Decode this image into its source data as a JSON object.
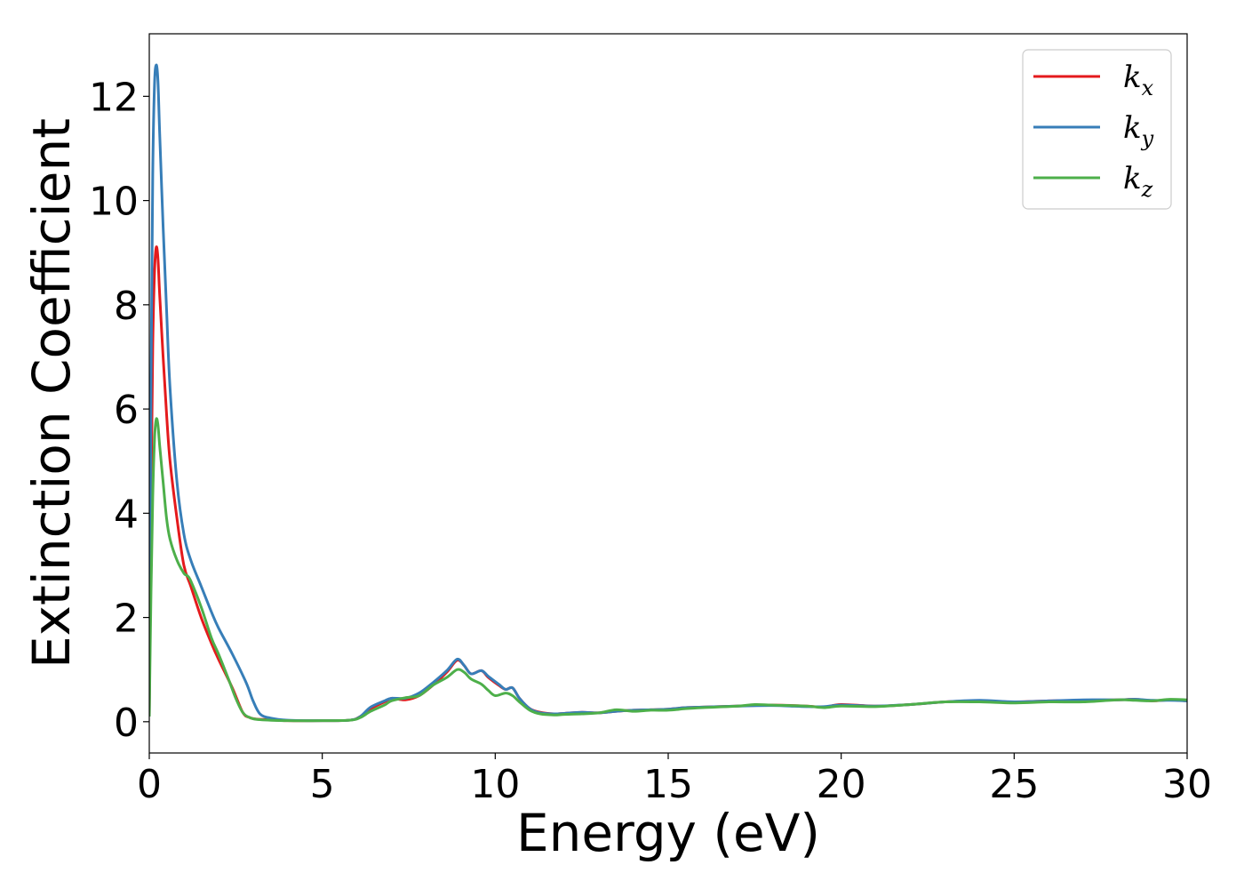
{
  "chart_data": {
    "type": "line",
    "title": "",
    "xlabel": "Energy (eV)",
    "ylabel": "Extinction Coefficient",
    "xlim": [
      0,
      30
    ],
    "ylim": [
      -0.6,
      13.2
    ],
    "xticks": [
      0,
      5,
      10,
      15,
      20,
      25,
      30
    ],
    "yticks": [
      0,
      2,
      4,
      6,
      8,
      10,
      12
    ],
    "grid": false,
    "legend_position": "top-right",
    "series": [
      {
        "name": "k_x",
        "legend_base": "k",
        "legend_sub": "x",
        "color": "#e41a1c",
        "x": [
          0.0,
          0.05,
          0.1,
          0.15,
          0.2,
          0.25,
          0.3,
          0.4,
          0.5,
          0.6,
          0.8,
          1.0,
          1.2,
          1.5,
          1.8,
          2.0,
          2.4,
          2.7,
          2.9,
          3.1,
          3.4,
          4.0,
          5.0,
          5.8,
          6.1,
          6.4,
          6.8,
          7.0,
          7.4,
          7.8,
          8.2,
          8.6,
          8.9,
          9.1,
          9.3,
          9.6,
          9.8,
          10.1,
          10.3,
          10.5,
          10.7,
          11.0,
          11.3,
          11.7,
          12.0,
          12.5,
          13.0,
          13.5,
          14.0,
          14.5,
          15.0,
          15.5,
          16.0,
          17.0,
          18.0,
          19.0,
          19.5,
          20.0,
          21.0,
          22.0,
          23.0,
          24.0,
          25.0,
          26.0,
          27.0,
          28.0,
          28.5,
          29.0,
          29.5,
          30.0
        ],
        "y": [
          0.1,
          4.2,
          7.2,
          8.6,
          9.1,
          8.9,
          8.2,
          7.0,
          5.9,
          5.0,
          3.9,
          3.0,
          2.6,
          2.0,
          1.5,
          1.2,
          0.65,
          0.18,
          0.08,
          0.05,
          0.04,
          0.02,
          0.02,
          0.03,
          0.1,
          0.25,
          0.38,
          0.45,
          0.42,
          0.5,
          0.7,
          0.95,
          1.18,
          1.08,
          0.92,
          0.98,
          0.85,
          0.7,
          0.62,
          0.65,
          0.45,
          0.25,
          0.18,
          0.15,
          0.16,
          0.18,
          0.17,
          0.2,
          0.22,
          0.23,
          0.24,
          0.27,
          0.28,
          0.3,
          0.32,
          0.3,
          0.28,
          0.33,
          0.3,
          0.33,
          0.38,
          0.4,
          0.38,
          0.4,
          0.41,
          0.42,
          0.43,
          0.4,
          0.42,
          0.4
        ]
      },
      {
        "name": "k_y",
        "legend_base": "k",
        "legend_sub": "y",
        "color": "#377eb8",
        "x": [
          0.0,
          0.05,
          0.1,
          0.15,
          0.2,
          0.25,
          0.3,
          0.4,
          0.5,
          0.6,
          0.8,
          1.0,
          1.2,
          1.5,
          1.8,
          2.0,
          2.4,
          2.8,
          3.0,
          3.2,
          3.5,
          4.0,
          5.0,
          5.8,
          6.1,
          6.4,
          6.8,
          7.0,
          7.4,
          7.8,
          8.2,
          8.6,
          8.9,
          9.1,
          9.3,
          9.6,
          9.8,
          10.1,
          10.3,
          10.5,
          10.7,
          11.0,
          11.3,
          11.7,
          12.0,
          12.5,
          13.0,
          13.5,
          14.0,
          14.5,
          15.0,
          15.5,
          16.0,
          17.0,
          18.0,
          19.0,
          19.5,
          20.0,
          21.0,
          22.0,
          23.0,
          24.0,
          25.0,
          26.0,
          27.0,
          28.0,
          28.5,
          29.0,
          29.5,
          30.0
        ],
        "y": [
          0.1,
          6.5,
          10.5,
          12.2,
          12.6,
          12.3,
          11.3,
          9.5,
          7.9,
          6.4,
          4.6,
          3.6,
          3.1,
          2.6,
          2.1,
          1.8,
          1.3,
          0.75,
          0.4,
          0.15,
          0.07,
          0.03,
          0.02,
          0.03,
          0.1,
          0.28,
          0.4,
          0.45,
          0.45,
          0.55,
          0.75,
          0.98,
          1.2,
          1.08,
          0.92,
          0.98,
          0.87,
          0.72,
          0.62,
          0.65,
          0.45,
          0.25,
          0.17,
          0.15,
          0.16,
          0.18,
          0.17,
          0.2,
          0.22,
          0.23,
          0.24,
          0.27,
          0.28,
          0.3,
          0.31,
          0.29,
          0.29,
          0.32,
          0.3,
          0.33,
          0.38,
          0.41,
          0.38,
          0.4,
          0.42,
          0.42,
          0.43,
          0.41,
          0.41,
          0.4
        ]
      },
      {
        "name": "k_z",
        "legend_base": "k",
        "legend_sub": "z",
        "color": "#4daf4a",
        "x": [
          0.0,
          0.05,
          0.1,
          0.15,
          0.2,
          0.25,
          0.3,
          0.4,
          0.5,
          0.6,
          0.8,
          1.0,
          1.1,
          1.2,
          1.5,
          1.8,
          2.0,
          2.3,
          2.5,
          2.7,
          2.9,
          3.2,
          4.0,
          5.0,
          5.8,
          6.1,
          6.4,
          6.8,
          7.0,
          7.4,
          7.8,
          8.2,
          8.6,
          8.9,
          9.1,
          9.3,
          9.6,
          9.8,
          10.0,
          10.3,
          10.5,
          10.7,
          11.0,
          11.3,
          11.7,
          12.0,
          12.5,
          13.0,
          13.5,
          14.0,
          14.5,
          15.0,
          15.5,
          16.0,
          17.0,
          17.5,
          18.0,
          19.0,
          19.5,
          20.0,
          21.0,
          22.0,
          23.0,
          24.0,
          25.0,
          26.0,
          27.0,
          28.0,
          28.5,
          29.0,
          29.5,
          30.0
        ],
        "y": [
          0.1,
          2.5,
          4.3,
          5.4,
          5.8,
          5.7,
          5.3,
          4.6,
          3.9,
          3.5,
          3.1,
          2.85,
          2.8,
          2.7,
          2.2,
          1.6,
          1.3,
          0.8,
          0.45,
          0.18,
          0.08,
          0.04,
          0.02,
          0.02,
          0.03,
          0.08,
          0.2,
          0.32,
          0.4,
          0.46,
          0.5,
          0.7,
          0.85,
          1.0,
          0.95,
          0.82,
          0.72,
          0.6,
          0.5,
          0.55,
          0.5,
          0.38,
          0.22,
          0.15,
          0.13,
          0.14,
          0.15,
          0.17,
          0.23,
          0.2,
          0.22,
          0.22,
          0.25,
          0.27,
          0.3,
          0.33,
          0.32,
          0.3,
          0.27,
          0.3,
          0.29,
          0.33,
          0.38,
          0.38,
          0.36,
          0.38,
          0.38,
          0.42,
          0.41,
          0.4,
          0.43,
          0.42
        ]
      }
    ]
  }
}
